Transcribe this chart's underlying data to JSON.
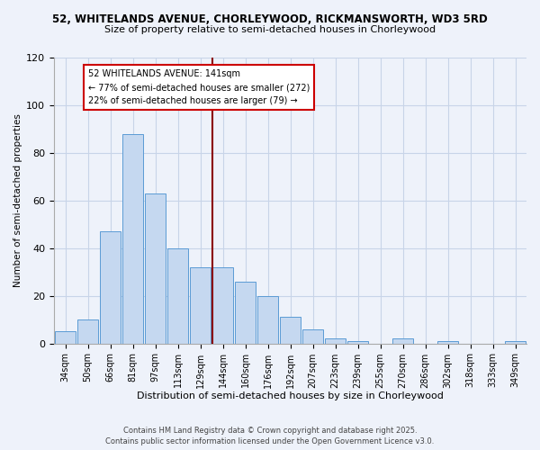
{
  "title1": "52, WHITELANDS AVENUE, CHORLEYWOOD, RICKMANSWORTH, WD3 5RD",
  "title2": "Size of property relative to semi-detached houses in Chorleywood",
  "xlabel": "Distribution of semi-detached houses by size in Chorleywood",
  "ylabel": "Number of semi-detached properties",
  "categories": [
    "34sqm",
    "50sqm",
    "66sqm",
    "81sqm",
    "97sqm",
    "113sqm",
    "129sqm",
    "144sqm",
    "160sqm",
    "176sqm",
    "192sqm",
    "207sqm",
    "223sqm",
    "239sqm",
    "255sqm",
    "270sqm",
    "286sqm",
    "302sqm",
    "318sqm",
    "333sqm",
    "349sqm"
  ],
  "values": [
    5,
    10,
    47,
    88,
    63,
    40,
    32,
    32,
    26,
    20,
    11,
    6,
    2,
    1,
    0,
    2,
    0,
    1,
    0,
    0,
    1
  ],
  "bar_color": "#c5d8f0",
  "bar_edge_color": "#5b9bd5",
  "vline_color": "#8b0000",
  "annotation_title": "52 WHITELANDS AVENUE: 141sqm",
  "annotation_line1": "← 77% of semi-detached houses are smaller (272)",
  "annotation_line2": "22% of semi-detached houses are larger (79) →",
  "annotation_box_color": "#ffffff",
  "annotation_box_edge": "#cc0000",
  "ylim": [
    0,
    120
  ],
  "yticks": [
    0,
    20,
    40,
    60,
    80,
    100,
    120
  ],
  "footnote1": "Contains HM Land Registry data © Crown copyright and database right 2025.",
  "footnote2": "Contains public sector information licensed under the Open Government Licence v3.0.",
  "bg_color": "#eef2fa",
  "grid_color": "#c8d4e8"
}
